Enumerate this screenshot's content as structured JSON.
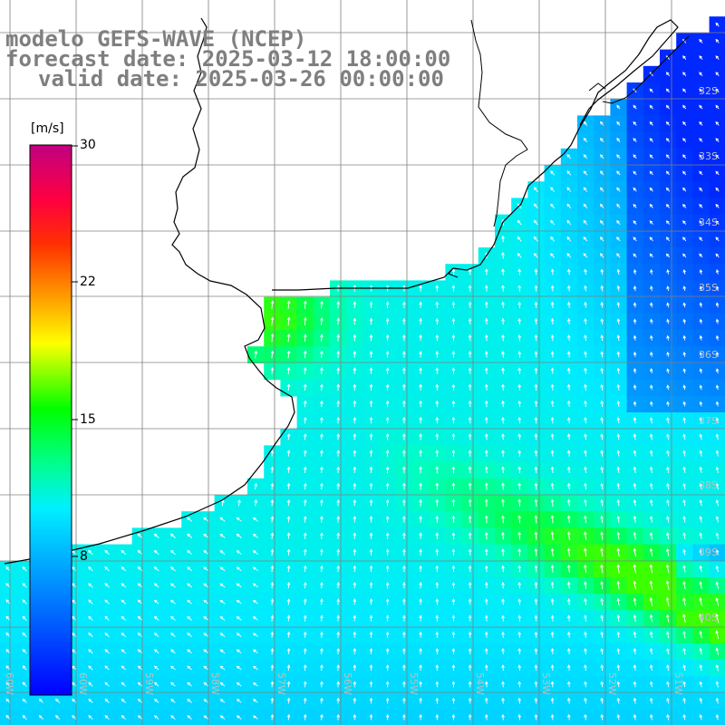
{
  "title": {
    "line1": "modelo GEFS-WAVE (NCEP)",
    "line2": "forecast date: 2025-03-12 18:00:00",
    "line3": "valid date: 2025-03-26 00:00:00"
  },
  "colorbar": {
    "unit": "[m/s]",
    "ticks": [
      "30",
      "22",
      "15",
      "8"
    ]
  },
  "grid_labels": {
    "latitudes": [
      "32S",
      "33S",
      "34S",
      "35S",
      "36S",
      "37S",
      "38S",
      "39S",
      "40S"
    ],
    "longitudes": [
      "60W",
      "59W",
      "58W",
      "57W",
      "56W",
      "55W",
      "54W",
      "53W",
      "52W",
      "51W",
      "50W"
    ]
  },
  "colors": {
    "land": "#ffffff",
    "coast": "#000000",
    "grid": "#808080",
    "arrows": "#ffffff",
    "scale": [
      "#0000ff",
      "#0080ff",
      "#00e0ff",
      "#00ff00",
      "#ffff00",
      "#ff8000",
      "#ff0000",
      "#c00080"
    ]
  }
}
